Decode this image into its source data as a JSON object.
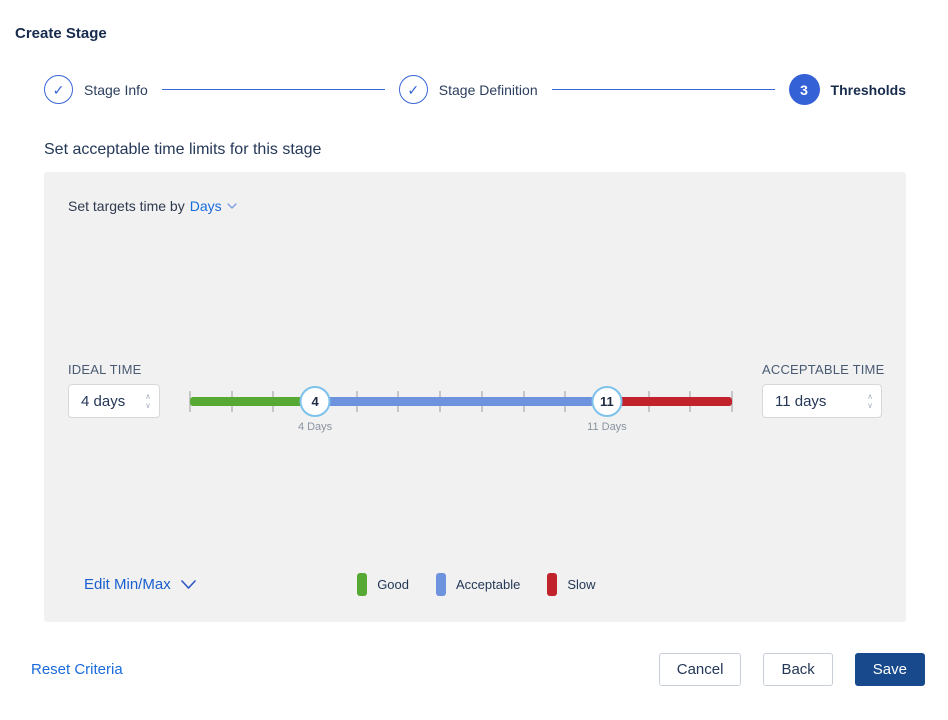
{
  "page": {
    "title": "Create Stage"
  },
  "icons": {
    "check": "✓",
    "spinner_up": "∧",
    "spinner_down": "∨"
  },
  "stepper": {
    "steps": [
      {
        "label": "Stage Info",
        "state": "complete"
      },
      {
        "label": "Stage Definition",
        "state": "complete"
      },
      {
        "label": "Thresholds",
        "state": "current",
        "number": "3"
      }
    ]
  },
  "section": {
    "heading": "Set acceptable time limits for this stage"
  },
  "panel": {
    "targets": {
      "prefix": "Set targets time by",
      "unit": "Days"
    },
    "ideal": {
      "label": "IDEAL TIME",
      "value": "4 days"
    },
    "acceptable": {
      "label": "ACCEPTABLE TIME",
      "value": "11 days"
    },
    "slider": {
      "min_day": 1,
      "max_day": 14,
      "ideal_day": 4,
      "acceptable_day": 11,
      "ideal_handle": "4",
      "acceptable_handle": "11",
      "ideal_caption": "4 Days",
      "acceptable_caption": "11 Days",
      "colors": {
        "good": "#56aa34",
        "acceptable": "#6e93de",
        "slow": "#c2222b",
        "handle_border": "#7ec2ec",
        "tick": "#c6c6c6"
      }
    },
    "edit_minmax_label": "Edit Min/Max",
    "legend": [
      {
        "label": "Good",
        "color": "#56aa34"
      },
      {
        "label": "Acceptable",
        "color": "#6e93de"
      },
      {
        "label": "Slow",
        "color": "#c2222b"
      }
    ]
  },
  "footer": {
    "reset_label": "Reset Criteria",
    "cancel_label": "Cancel",
    "back_label": "Back",
    "save_label": "Save"
  },
  "colors": {
    "accent_blue": "#3a66d8",
    "link_blue": "#1a6bdc",
    "save_button": "#17498c",
    "panel_background": "#f1f1f1",
    "heading_text": "#172b4d"
  }
}
